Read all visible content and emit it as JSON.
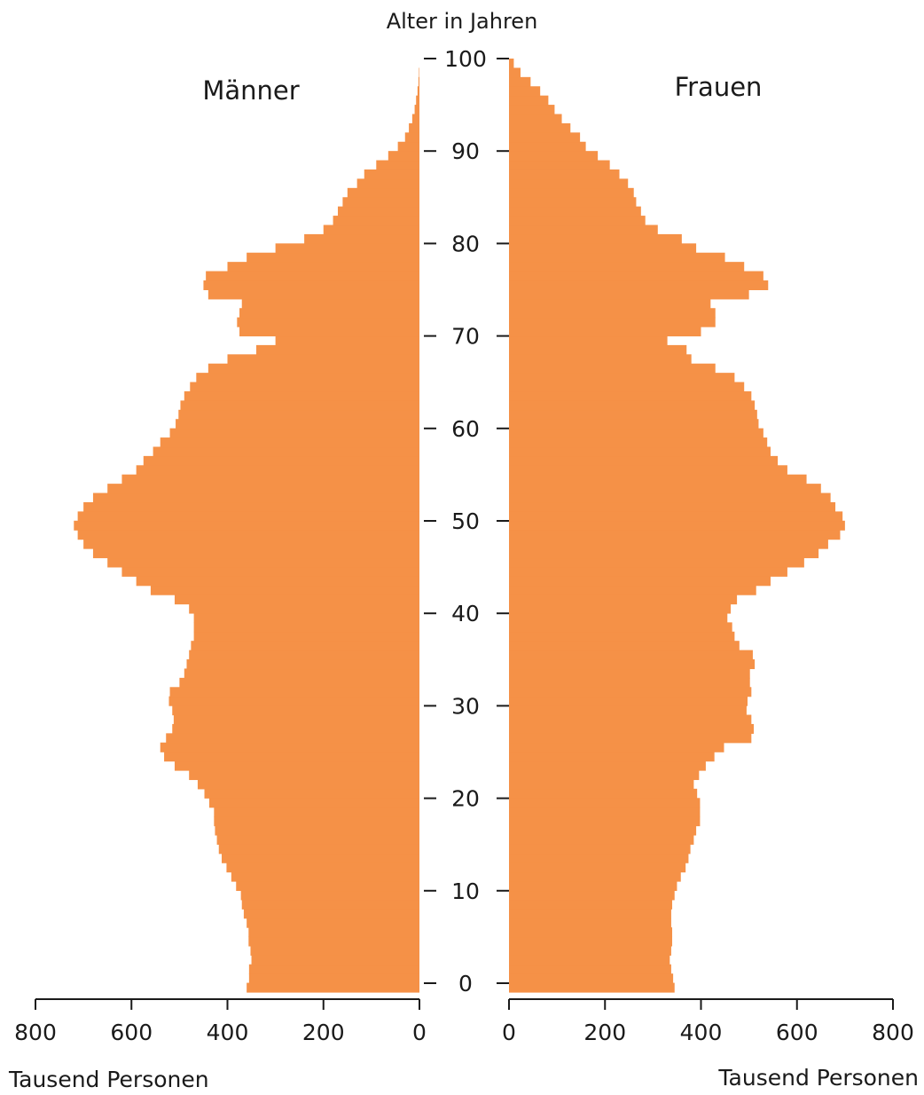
{
  "chart_data": {
    "type": "bar",
    "subtype": "population-pyramid",
    "y_axis_title": "Alter in Jahren",
    "y_ticks": [
      0,
      10,
      20,
      30,
      40,
      50,
      60,
      70,
      80,
      90,
      100
    ],
    "x_unit_label": "Tausend Personen",
    "x_ticks": [
      800,
      600,
      400,
      200,
      0
    ],
    "x_range": [
      0,
      800
    ],
    "ages": [
      0,
      1,
      2,
      3,
      4,
      5,
      6,
      7,
      8,
      9,
      10,
      11,
      12,
      13,
      14,
      15,
      16,
      17,
      18,
      19,
      20,
      21,
      22,
      23,
      24,
      25,
      26,
      27,
      28,
      29,
      30,
      31,
      32,
      33,
      34,
      35,
      36,
      37,
      38,
      39,
      40,
      41,
      42,
      43,
      44,
      45,
      46,
      47,
      48,
      49,
      50,
      51,
      52,
      53,
      54,
      55,
      56,
      57,
      58,
      59,
      60,
      61,
      62,
      63,
      64,
      65,
      66,
      67,
      68,
      69,
      70,
      71,
      72,
      73,
      74,
      75,
      76,
      77,
      78,
      79,
      80,
      81,
      82,
      83,
      84,
      85,
      86,
      87,
      88,
      89,
      90,
      91,
      92,
      93,
      94,
      95,
      96,
      97,
      98,
      99,
      100
    ],
    "series": [
      {
        "name": "Männer",
        "side": "left",
        "color": "#f59147",
        "values": [
          360,
          355,
          355,
          350,
          352,
          356,
          356,
          360,
          366,
          370,
          372,
          382,
          392,
          402,
          412,
          418,
          422,
          426,
          428,
          428,
          438,
          448,
          462,
          480,
          510,
          532,
          540,
          528,
          515,
          512,
          515,
          522,
          520,
          500,
          490,
          485,
          480,
          476,
          470,
          470,
          470,
          480,
          510,
          560,
          590,
          620,
          650,
          680,
          700,
          712,
          720,
          712,
          700,
          680,
          650,
          620,
          590,
          575,
          555,
          540,
          520,
          508,
          502,
          498,
          490,
          478,
          465,
          440,
          400,
          340,
          300,
          375,
          380,
          375,
          370,
          440,
          450,
          445,
          400,
          360,
          300,
          240,
          200,
          180,
          170,
          160,
          150,
          130,
          115,
          90,
          65,
          45,
          30,
          22,
          15,
          10,
          7,
          4,
          2,
          1,
          0
        ]
      },
      {
        "name": "Frauen",
        "side": "right",
        "color": "#f59147",
        "values": [
          345,
          342,
          338,
          335,
          338,
          340,
          340,
          338,
          338,
          340,
          345,
          350,
          358,
          368,
          374,
          378,
          385,
          390,
          398,
          398,
          398,
          392,
          385,
          396,
          410,
          428,
          448,
          505,
          510,
          505,
          495,
          497,
          505,
          502,
          502,
          512,
          508,
          480,
          470,
          465,
          455,
          462,
          475,
          515,
          545,
          580,
          615,
          645,
          665,
          690,
          700,
          695,
          680,
          670,
          650,
          620,
          580,
          560,
          545,
          538,
          530,
          520,
          517,
          512,
          505,
          490,
          470,
          430,
          380,
          370,
          330,
          400,
          430,
          430,
          420,
          500,
          540,
          530,
          490,
          450,
          390,
          360,
          310,
          284,
          275,
          265,
          260,
          248,
          230,
          210,
          185,
          160,
          148,
          128,
          110,
          95,
          82,
          65,
          45,
          24,
          10
        ]
      }
    ]
  },
  "labels": {
    "left_title": "Männer",
    "right_title": "Frauen",
    "y_axis_title": "Alter in Jahren",
    "left_x_unit": "Tausend Personen",
    "right_x_unit": "Tausend Personen"
  }
}
